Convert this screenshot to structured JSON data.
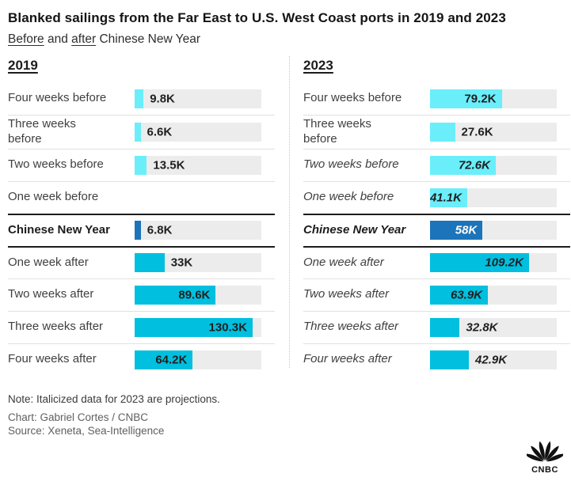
{
  "title": "Blanked sailings from the Far East to U.S. West Coast ports in 2019 and 2023",
  "subtitle": {
    "parts": [
      {
        "text": "Before",
        "underline": true
      },
      {
        "text": " and ",
        "underline": false
      },
      {
        "text": "after",
        "underline": true
      },
      {
        "text": " Chinese New Year",
        "underline": false
      }
    ]
  },
  "colors": {
    "light_cyan": "#6aeefa",
    "dark_cyan": "#00bfdf",
    "blue": "#1c74ba",
    "track": "#ececec",
    "bar_label": "#1f1f1f",
    "bar_label_inverse": "#ffffff"
  },
  "chart_data": {
    "type": "bar",
    "orientation": "horizontal",
    "xlim": [
      0,
      140
    ],
    "grid": false,
    "legend": "none",
    "panels": [
      {
        "title": "2019",
        "rows": [
          {
            "label": "Four weeks before",
            "value": 9.8,
            "display": "9.8K",
            "color": "light",
            "label_pos": "outside",
            "italic": false,
            "bold": false
          },
          {
            "label": "Three weeks\nbefore",
            "value": 6.6,
            "display": "6.6K",
            "color": "light",
            "label_pos": "outside",
            "italic": false,
            "bold": false
          },
          {
            "label": "Two weeks before",
            "value": 13.5,
            "display": "13.5K",
            "color": "light",
            "label_pos": "outside",
            "italic": false,
            "bold": false
          },
          {
            "label": "One week before",
            "value": null,
            "display": "",
            "color": null,
            "label_pos": null,
            "italic": false,
            "bold": false
          },
          {
            "label": "Chinese New Year",
            "value": 6.8,
            "display": "6.8K",
            "color": "blue",
            "label_pos": "outside",
            "italic": false,
            "bold": true
          },
          {
            "label": "One week after",
            "value": 33,
            "display": "33K",
            "color": "dark",
            "label_pos": "outside",
            "italic": false,
            "bold": false
          },
          {
            "label": "Two weeks after",
            "value": 89.6,
            "display": "89.6K",
            "color": "dark",
            "label_pos": "inside",
            "italic": false,
            "bold": false
          },
          {
            "label": "Three weeks after",
            "value": 130.3,
            "display": "130.3K",
            "color": "dark",
            "label_pos": "inside",
            "italic": false,
            "bold": false
          },
          {
            "label": "Four weeks after",
            "value": 64.2,
            "display": "64.2K",
            "color": "dark",
            "label_pos": "inside",
            "italic": false,
            "bold": false
          }
        ]
      },
      {
        "title": "2023",
        "rows": [
          {
            "label": "Four weeks before",
            "value": 79.2,
            "display": "79.2K",
            "color": "light",
            "label_pos": "inside",
            "italic": false,
            "bold": false
          },
          {
            "label": "Three weeks\nbefore",
            "value": 27.6,
            "display": "27.6K",
            "color": "light",
            "label_pos": "outside",
            "italic": false,
            "bold": false
          },
          {
            "label": "Two weeks before",
            "value": 72.6,
            "display": "72.6K",
            "color": "light",
            "label_pos": "inside",
            "italic": true,
            "bold": false
          },
          {
            "label": "One week before",
            "value": 41.1,
            "display": "41.1K",
            "color": "light",
            "label_pos": "inside",
            "italic": true,
            "bold": false
          },
          {
            "label": "Chinese New Year",
            "value": 58,
            "display": "58K",
            "color": "blue",
            "label_pos": "inside",
            "italic": true,
            "bold": true,
            "value_white": true
          },
          {
            "label": "One week after",
            "value": 109.2,
            "display": "109.2K",
            "color": "dark",
            "label_pos": "inside",
            "italic": true,
            "bold": false
          },
          {
            "label": "Two weeks after",
            "value": 63.9,
            "display": "63.9K",
            "color": "dark",
            "label_pos": "inside",
            "italic": true,
            "bold": false
          },
          {
            "label": "Three weeks after",
            "value": 32.8,
            "display": "32.8K",
            "color": "dark",
            "label_pos": "outside",
            "italic": true,
            "bold": false
          },
          {
            "label": "Four weeks after",
            "value": 42.9,
            "display": "42.9K",
            "color": "dark",
            "label_pos": "outside",
            "italic": true,
            "bold": false
          }
        ]
      }
    ]
  },
  "footer": {
    "note": "Note: Italicized data for 2023 are projections.",
    "chart_credit": "Chart: Gabriel Cortes / CNBC",
    "source": "Source: Xeneta, Sea-Intelligence",
    "logo_text": "CNBC"
  }
}
